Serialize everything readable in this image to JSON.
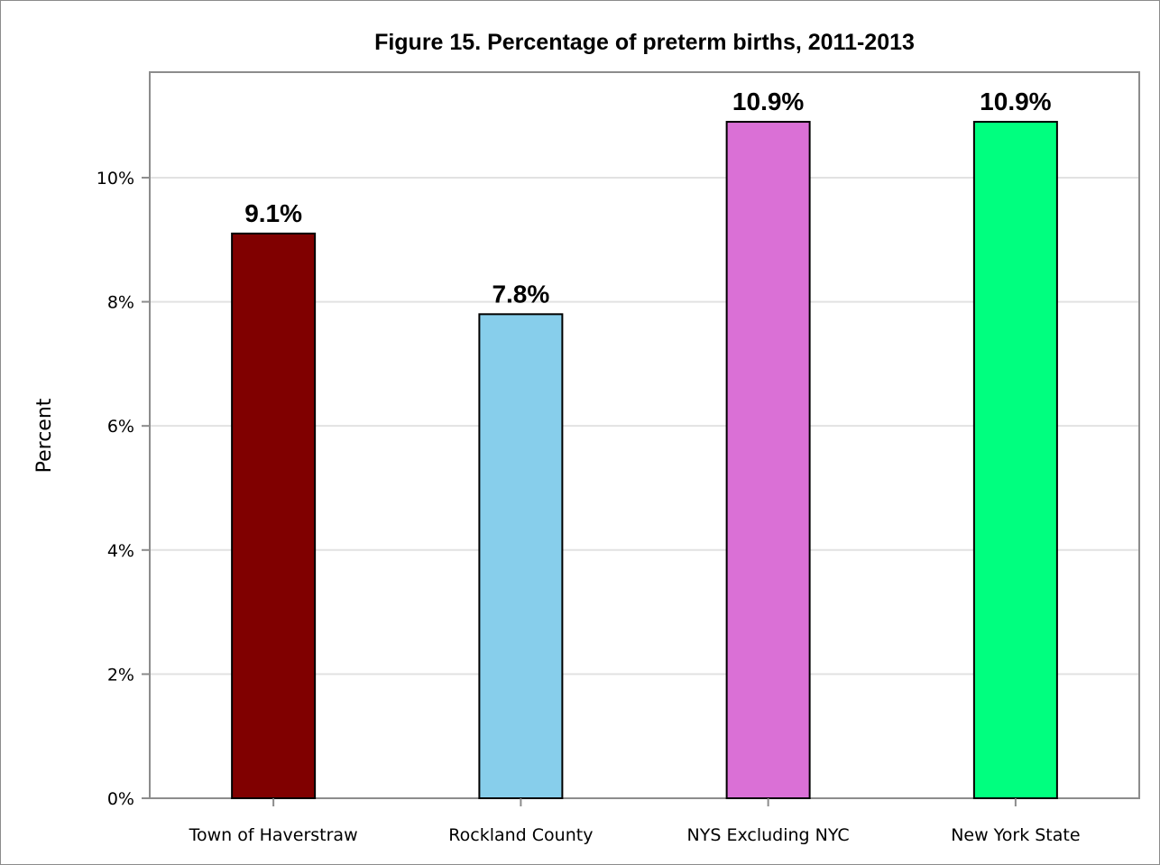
{
  "chart_data": {
    "type": "bar",
    "title": "Figure 15. Percentage of preterm births, 2011-2013",
    "xlabel": "",
    "ylabel": "Percent",
    "categories": [
      "Town of Haverstraw",
      "Rockland County",
      "NYS Excluding NYC",
      "New York State"
    ],
    "values": [
      9.1,
      7.8,
      10.9,
      10.9
    ],
    "data_labels": [
      "9.1%",
      "7.8%",
      "10.9%",
      "10.9%"
    ],
    "colors": [
      "#800000",
      "#87ceeb",
      "#da70d6",
      "#00ff7f"
    ],
    "ylim": [
      0,
      11.7
    ],
    "yticks": [
      0,
      2,
      4,
      6,
      8,
      10
    ],
    "ytick_labels": [
      "0%",
      "2%",
      "4%",
      "6%",
      "8%",
      "10%"
    ],
    "grid": true,
    "legend": "none"
  }
}
